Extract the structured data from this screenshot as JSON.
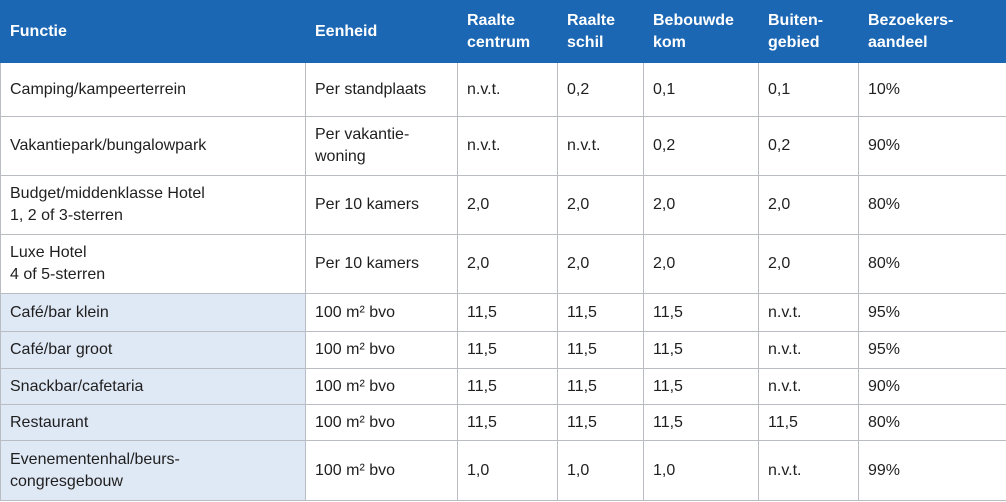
{
  "table": {
    "header": [
      "Functie",
      "Eenheid",
      "Raalte\ncentrum",
      "Raalte\nschil",
      "Bebouwde\nkom",
      "Buiten-\ngebied",
      "Bezoekers-\naandeel"
    ],
    "rows": [
      [
        "Camping/kampeerterrein",
        "Per standplaats",
        "n.v.t.",
        "0,2",
        "0,1",
        "0,1",
        "10%"
      ],
      [
        "Vakantiepark/bungalowpark",
        "Per vakantie-\nwoning",
        "n.v.t.",
        "n.v.t.",
        "0,2",
        "0,2",
        "90%"
      ],
      [
        "Budget/middenklasse Hotel\n1, 2 of 3-sterren",
        "Per 10 kamers",
        "2,0",
        "2,0",
        "2,0",
        "2,0",
        "80%"
      ],
      [
        "Luxe Hotel\n4 of 5-sterren",
        "Per 10 kamers",
        "2,0",
        "2,0",
        "2,0",
        "2,0",
        "80%"
      ],
      [
        "Café/bar klein",
        "100 m² bvo",
        "11,5",
        "11,5",
        "11,5",
        "n.v.t.",
        "95%"
      ],
      [
        "Café/bar groot",
        "100 m² bvo",
        "11,5",
        "11,5",
        "11,5",
        "n.v.t.",
        "95%"
      ],
      [
        "Snackbar/cafetaria",
        "100 m² bvo",
        "11,5",
        "11,5",
        "11,5",
        "n.v.t.",
        "90%"
      ],
      [
        "Restaurant",
        "100 m² bvo",
        "11,5",
        "11,5",
        "11,5",
        "11,5",
        "80%"
      ],
      [
        "Evenementenhal/beurs-\ncongresgebouw",
        "100 m² bvo",
        "1,0",
        "1,0",
        "1,0",
        "n.v.t.",
        "99%"
      ]
    ]
  }
}
